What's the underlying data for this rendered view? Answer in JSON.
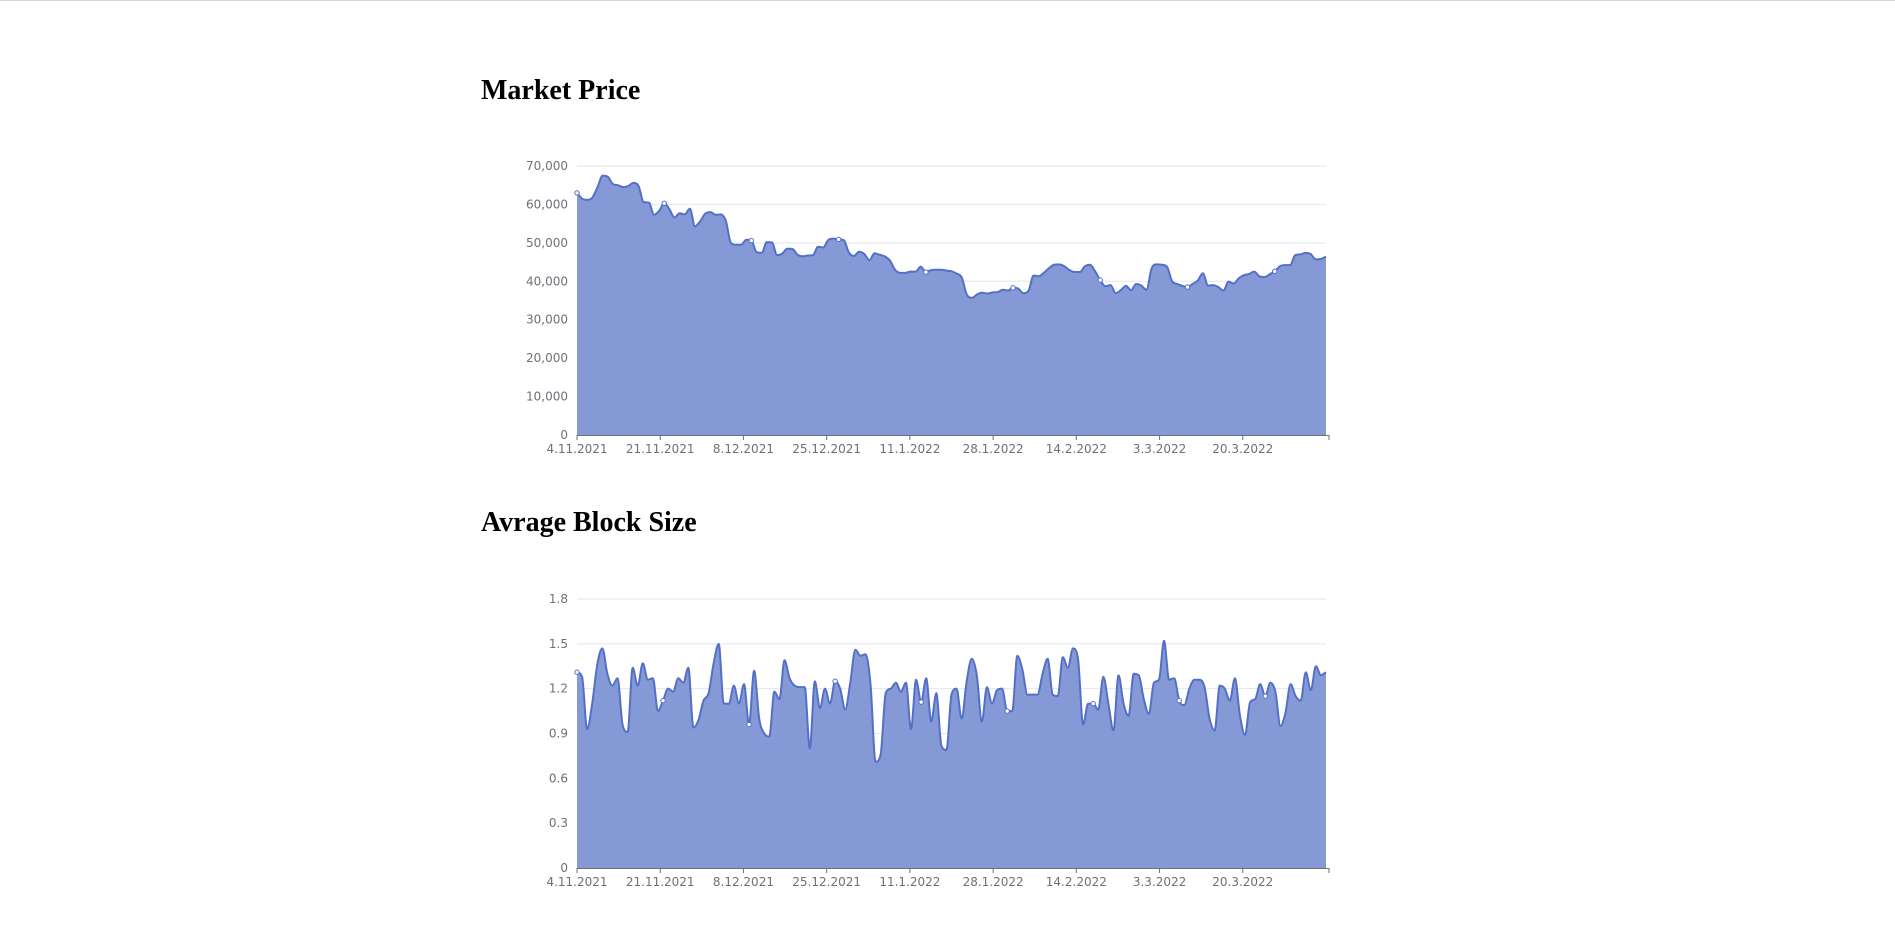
{
  "charts": [
    {
      "title": "Market Price",
      "y_ticks": [
        "0",
        "10,000",
        "20,000",
        "30,000",
        "40,000",
        "50,000",
        "60,000",
        "70,000"
      ],
      "x_ticks": [
        "4.11.2021",
        "21.11.2021",
        "8.12.2021",
        "25.12.2021",
        "11.1.2022",
        "28.1.2022",
        "14.2.2022",
        "3.3.2022",
        "20.3.2022"
      ]
    },
    {
      "title": "Avrage Block Size",
      "y_ticks": [
        "0",
        "0.3",
        "0.6",
        "0.9",
        "1.2",
        "1.5",
        "1.8"
      ],
      "x_ticks": [
        "4.11.2021",
        "21.11.2021",
        "8.12.2021",
        "25.12.2021",
        "11.1.2022",
        "28.1.2022",
        "14.2.2022",
        "3.3.2022",
        "20.3.2022"
      ]
    }
  ],
  "colors": {
    "area_fill": "#8599d7",
    "line": "#5470c6",
    "grid": "#e0e6f1",
    "axis": "#6e7079"
  },
  "chart_data": [
    {
      "type": "area",
      "title": "Market Price",
      "xlabel": "",
      "ylabel": "",
      "ylim": [
        0,
        70000
      ],
      "x_start": "4.11.2021",
      "x_end": "6.4.2022",
      "x_ticks": [
        "4.11.2021",
        "21.11.2021",
        "8.12.2021",
        "25.12.2021",
        "11.1.2022",
        "28.1.2022",
        "14.2.2022",
        "3.3.2022",
        "20.3.2022"
      ],
      "grid": true,
      "smooth": true,
      "markers_every": 17,
      "values": [
        63000,
        61500,
        61200,
        61800,
        64500,
        67500,
        67200,
        65300,
        65000,
        64500,
        64800,
        65600,
        64800,
        60600,
        60500,
        57300,
        58300,
        60300,
        58800,
        56600,
        57700,
        57400,
        58900,
        54300,
        55600,
        57600,
        58000,
        57300,
        57400,
        55800,
        50000,
        49500,
        49500,
        50800,
        50600,
        47600,
        47400,
        50200,
        50100,
        46800,
        47200,
        48500,
        48400,
        46900,
        46500,
        46700,
        46800,
        49000,
        48800,
        50800,
        51100,
        50900,
        50700,
        47500,
        46600,
        47700,
        47100,
        45500,
        47300,
        46900,
        46500,
        45400,
        43000,
        42200,
        42200,
        42500,
        42500,
        43800,
        42400,
        42900,
        43000,
        43000,
        42800,
        42600,
        42000,
        41000,
        36500,
        35700,
        36600,
        37000,
        36800,
        37100,
        37200,
        37800,
        37600,
        38300,
        38100,
        36900,
        37500,
        41500,
        41300,
        42200,
        43400,
        44300,
        44400,
        43900,
        42900,
        42400,
        42400,
        43900,
        44300,
        42600,
        40300,
        38700,
        39000,
        36900,
        37700,
        38800,
        37700,
        39300,
        38900,
        37800,
        43300,
        44400,
        44300,
        43800,
        40000,
        39300,
        38800,
        38500,
        39300,
        40200,
        42100,
        38900,
        39000,
        38500,
        37600,
        39900,
        39400,
        40800,
        41600,
        41900,
        42500,
        41300,
        41100,
        41800,
        42600,
        43900,
        44200,
        44200,
        46800,
        47000,
        47400,
        47100,
        45700,
        45800,
        46400
      ]
    },
    {
      "type": "area",
      "title": "Avrage Block Size",
      "xlabel": "",
      "ylabel": "",
      "ylim": [
        0,
        1.8
      ],
      "x_start": "4.11.2021",
      "x_end": "6.4.2022",
      "x_ticks": [
        "4.11.2021",
        "21.11.2021",
        "8.12.2021",
        "25.12.2021",
        "11.1.2022",
        "28.1.2022",
        "14.2.2022",
        "3.3.2022",
        "20.3.2022"
      ],
      "grid": true,
      "smooth": true,
      "markers_every": 17,
      "values": [
        1.31,
        1.28,
        0.93,
        1.1,
        1.36,
        1.47,
        1.3,
        1.22,
        1.27,
        0.96,
        0.91,
        1.34,
        1.22,
        1.37,
        1.26,
        1.27,
        1.05,
        1.12,
        1.2,
        1.18,
        1.27,
        1.24,
        1.34,
        0.94,
        0.99,
        1.12,
        1.17,
        1.37,
        1.5,
        1.1,
        1.1,
        1.22,
        1.1,
        1.23,
        0.96,
        1.32,
        1.0,
        0.9,
        0.88,
        1.18,
        1.13,
        1.39,
        1.27,
        1.22,
        1.21,
        1.21,
        0.8,
        1.25,
        1.07,
        1.2,
        1.1,
        1.25,
        1.2,
        1.06,
        1.24,
        1.46,
        1.42,
        1.43,
        1.23,
        0.71,
        0.76,
        1.17,
        1.2,
        1.24,
        1.18,
        1.24,
        0.93,
        1.26,
        1.11,
        1.27,
        0.98,
        1.17,
        0.82,
        0.79,
        1.16,
        1.2,
        1.0,
        1.25,
        1.4,
        1.29,
        0.98,
        1.21,
        1.1,
        1.19,
        1.2,
        1.05,
        1.05,
        1.42,
        1.33,
        1.16,
        1.16,
        1.16,
        1.3,
        1.4,
        1.16,
        1.15,
        1.41,
        1.34,
        1.47,
        1.4,
        0.96,
        1.1,
        1.1,
        1.06,
        1.28,
        1.1,
        0.92,
        1.29,
        1.1,
        1.02,
        1.3,
        1.29,
        1.13,
        1.03,
        1.24,
        1.26,
        1.52,
        1.26,
        1.27,
        1.12,
        1.09,
        1.2,
        1.26,
        1.26,
        1.21,
        1.0,
        0.92,
        1.22,
        1.2,
        1.12,
        1.27,
        1.02,
        0.89,
        1.11,
        1.13,
        1.23,
        1.15,
        1.24,
        1.18,
        0.95,
        1.04,
        1.23,
        1.15,
        1.12,
        1.31,
        1.19,
        1.35,
        1.29,
        1.31
      ]
    }
  ]
}
